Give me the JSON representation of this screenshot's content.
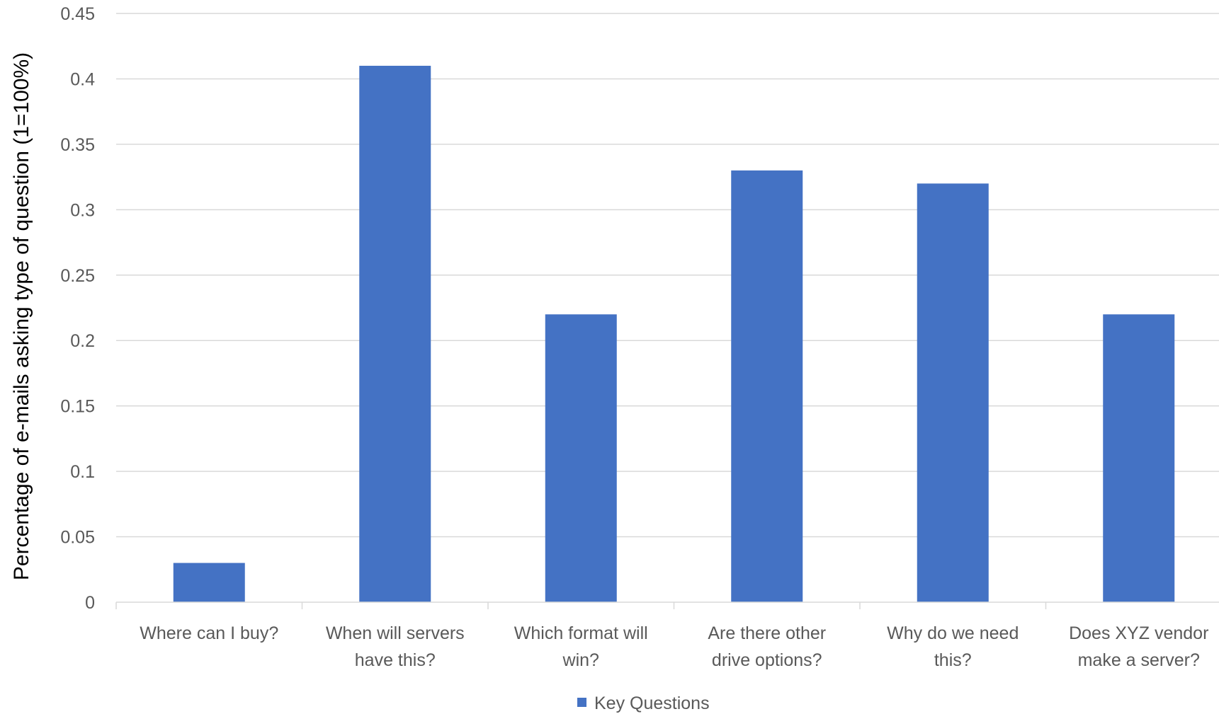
{
  "chart_data": {
    "type": "bar",
    "categories": [
      [
        "Where can I buy?"
      ],
      [
        "When will servers",
        "have this?"
      ],
      [
        "Which format will",
        "win?"
      ],
      [
        "Are there other",
        "drive options?"
      ],
      [
        "Why do we need",
        "this?"
      ],
      [
        "Does XYZ vendor",
        "make a server?"
      ]
    ],
    "series": [
      {
        "name": "Key Questions",
        "values": [
          0.03,
          0.41,
          0.22,
          0.33,
          0.32,
          0.22
        ],
        "color": "#4472C4"
      }
    ],
    "title": "",
    "xlabel": "",
    "ylabel": "Percentage of e-mails asking type of question (1=100%)",
    "ylim": [
      0,
      0.45
    ],
    "yticks": [
      "0",
      "0.05",
      "0.1",
      "0.15",
      "0.2",
      "0.25",
      "0.3",
      "0.35",
      "0.4",
      "0.45"
    ],
    "grid": true,
    "legend": "bottom",
    "colors": {
      "gridline": "#D9D9D9",
      "axis": "#D9D9D9"
    }
  }
}
